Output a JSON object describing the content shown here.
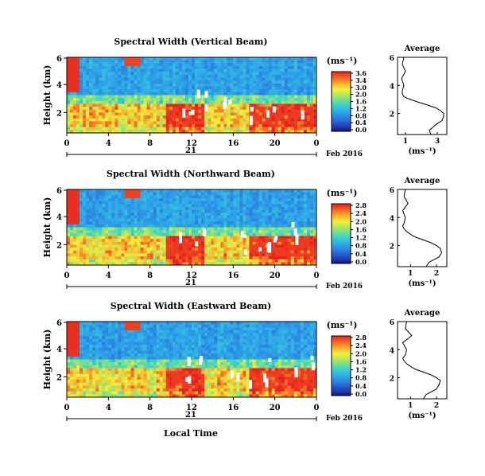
{
  "figure": {
    "xlabel": "Local Time",
    "date_label": "Feb 2016",
    "day_label": "21",
    "unit": "(ms⁻¹)",
    "avg_xlabel": "(ms⁻¹)"
  },
  "chart_data": [
    {
      "type": "heatmap",
      "title": "Spectral Width (Vertical Beam)",
      "xlabel": "",
      "ylabel": "Height (km)",
      "xticks": [
        "0",
        "4",
        "8",
        "12",
        "16",
        "20",
        "0"
      ],
      "yticks": [
        "6",
        "4",
        "2"
      ],
      "xlim": [
        0,
        24
      ],
      "ylim": [
        0.5,
        6
      ],
      "colorbar": {
        "ticks": [
          "3.6",
          "3.4",
          "3.0",
          "2.0",
          "1.6",
          "1.2",
          "0.8",
          "0.4",
          "0.0"
        ]
      },
      "average": {
        "title": "Average",
        "xticks": [
          "1",
          "3"
        ],
        "yticks": [
          "6",
          "4",
          "2"
        ],
        "xlim": [
          0.5,
          3.6
        ],
        "profile_height_km": [
          0.5,
          0.8,
          1.0,
          1.2,
          1.5,
          1.8,
          2.0,
          2.2,
          2.4,
          2.6,
          2.8,
          3.0,
          3.2,
          3.4,
          3.6,
          4.0,
          4.5,
          5.0,
          5.5,
          6.0
        ],
        "profile_value": [
          2.6,
          2.5,
          2.7,
          2.9,
          3.3,
          3.4,
          3.4,
          3.2,
          2.9,
          2.4,
          1.8,
          1.3,
          0.9,
          0.8,
          0.8,
          0.9,
          0.75,
          1.0,
          0.8,
          0.9
        ]
      }
    },
    {
      "type": "heatmap",
      "title": "Spectral Width (Northward Beam)",
      "xlabel": "",
      "ylabel": "Height (km)",
      "xticks": [
        "0",
        "4",
        "8",
        "12",
        "16",
        "20",
        "0"
      ],
      "yticks": [
        "6",
        "4",
        "2"
      ],
      "xlim": [
        0,
        24
      ],
      "ylim": [
        0.5,
        6
      ],
      "colorbar": {
        "ticks": [
          "2.8",
          "2.4",
          "2.0",
          "1.6",
          "1.2",
          "0.8",
          "0.4",
          "0.0"
        ]
      },
      "average": {
        "title": "Average",
        "xticks": [
          "1",
          "2"
        ],
        "yticks": [
          "6",
          "4",
          "2"
        ],
        "xlim": [
          0.5,
          2.4
        ],
        "profile_height_km": [
          0.5,
          0.8,
          1.0,
          1.2,
          1.5,
          1.8,
          2.0,
          2.2,
          2.4,
          2.6,
          2.8,
          3.0,
          3.2,
          3.4,
          3.6,
          4.0,
          4.5,
          5.0,
          5.5,
          6.0
        ],
        "profile_value": [
          1.6,
          1.7,
          1.9,
          2.1,
          2.2,
          2.15,
          2.0,
          1.8,
          1.5,
          1.2,
          1.0,
          0.85,
          0.75,
          0.7,
          0.75,
          0.8,
          0.7,
          0.9,
          0.75,
          0.8
        ]
      }
    },
    {
      "type": "heatmap",
      "title": "Spectral Width (Eastward Beam)",
      "xlabel": "Local Time",
      "ylabel": "Height (km)",
      "xticks": [
        "0",
        "4",
        "8",
        "12",
        "16",
        "20",
        "0"
      ],
      "yticks": [
        "6",
        "4",
        "2"
      ],
      "xlim": [
        0,
        24
      ],
      "ylim": [
        0.5,
        6
      ],
      "colorbar": {
        "ticks": [
          "2.8",
          "2.4",
          "2.0",
          "1.6",
          "1.2",
          "0.8",
          "0.4",
          "0.0"
        ]
      },
      "average": {
        "title": "Average",
        "xticks": [
          "1",
          "2"
        ],
        "yticks": [
          "6",
          "4",
          "2"
        ],
        "xlim": [
          0.5,
          2.4
        ],
        "profile_height_km": [
          0.5,
          0.8,
          1.0,
          1.2,
          1.5,
          1.8,
          2.0,
          2.2,
          2.4,
          2.6,
          2.8,
          3.0,
          3.2,
          3.4,
          3.6,
          4.0,
          4.5,
          5.0,
          5.5,
          6.0
        ],
        "profile_value": [
          1.5,
          1.6,
          1.8,
          2.0,
          2.1,
          2.15,
          2.0,
          1.8,
          1.5,
          1.2,
          1.0,
          0.85,
          0.75,
          0.7,
          0.8,
          0.85,
          0.7,
          1.05,
          0.8,
          0.85
        ]
      }
    }
  ]
}
